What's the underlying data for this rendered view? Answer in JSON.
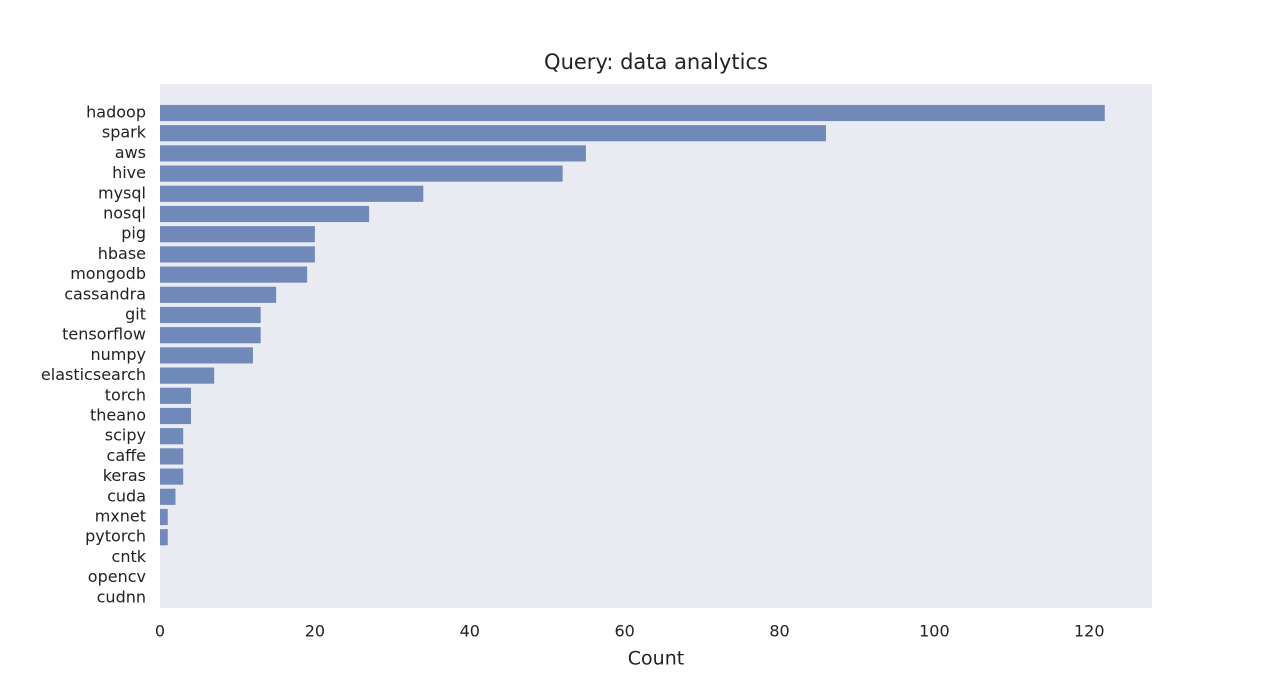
{
  "chart_data": {
    "type": "bar",
    "orientation": "horizontal",
    "title": "Query: data analytics",
    "x_label": "Count",
    "categories": [
      "hadoop",
      "spark",
      "aws",
      "hive",
      "mysql",
      "nosql",
      "pig",
      "hbase",
      "mongodb",
      "cassandra",
      "git",
      "tensorflow",
      "numpy",
      "elasticsearch",
      "torch",
      "theano",
      "scipy",
      "caffe",
      "keras",
      "cuda",
      "mxnet",
      "pytorch",
      "cntk",
      "opencv",
      "cudnn"
    ],
    "values": [
      122,
      86,
      55,
      52,
      34,
      27,
      20,
      20,
      19,
      15,
      13,
      13,
      12,
      7,
      4,
      4,
      3,
      3,
      3,
      2,
      1,
      1,
      0,
      0,
      0
    ],
    "color": "#7089b9",
    "xlim": [
      0,
      128.1
    ],
    "xticks": [
      0,
      20,
      40,
      60,
      80,
      100,
      120
    ],
    "grid": false
  }
}
